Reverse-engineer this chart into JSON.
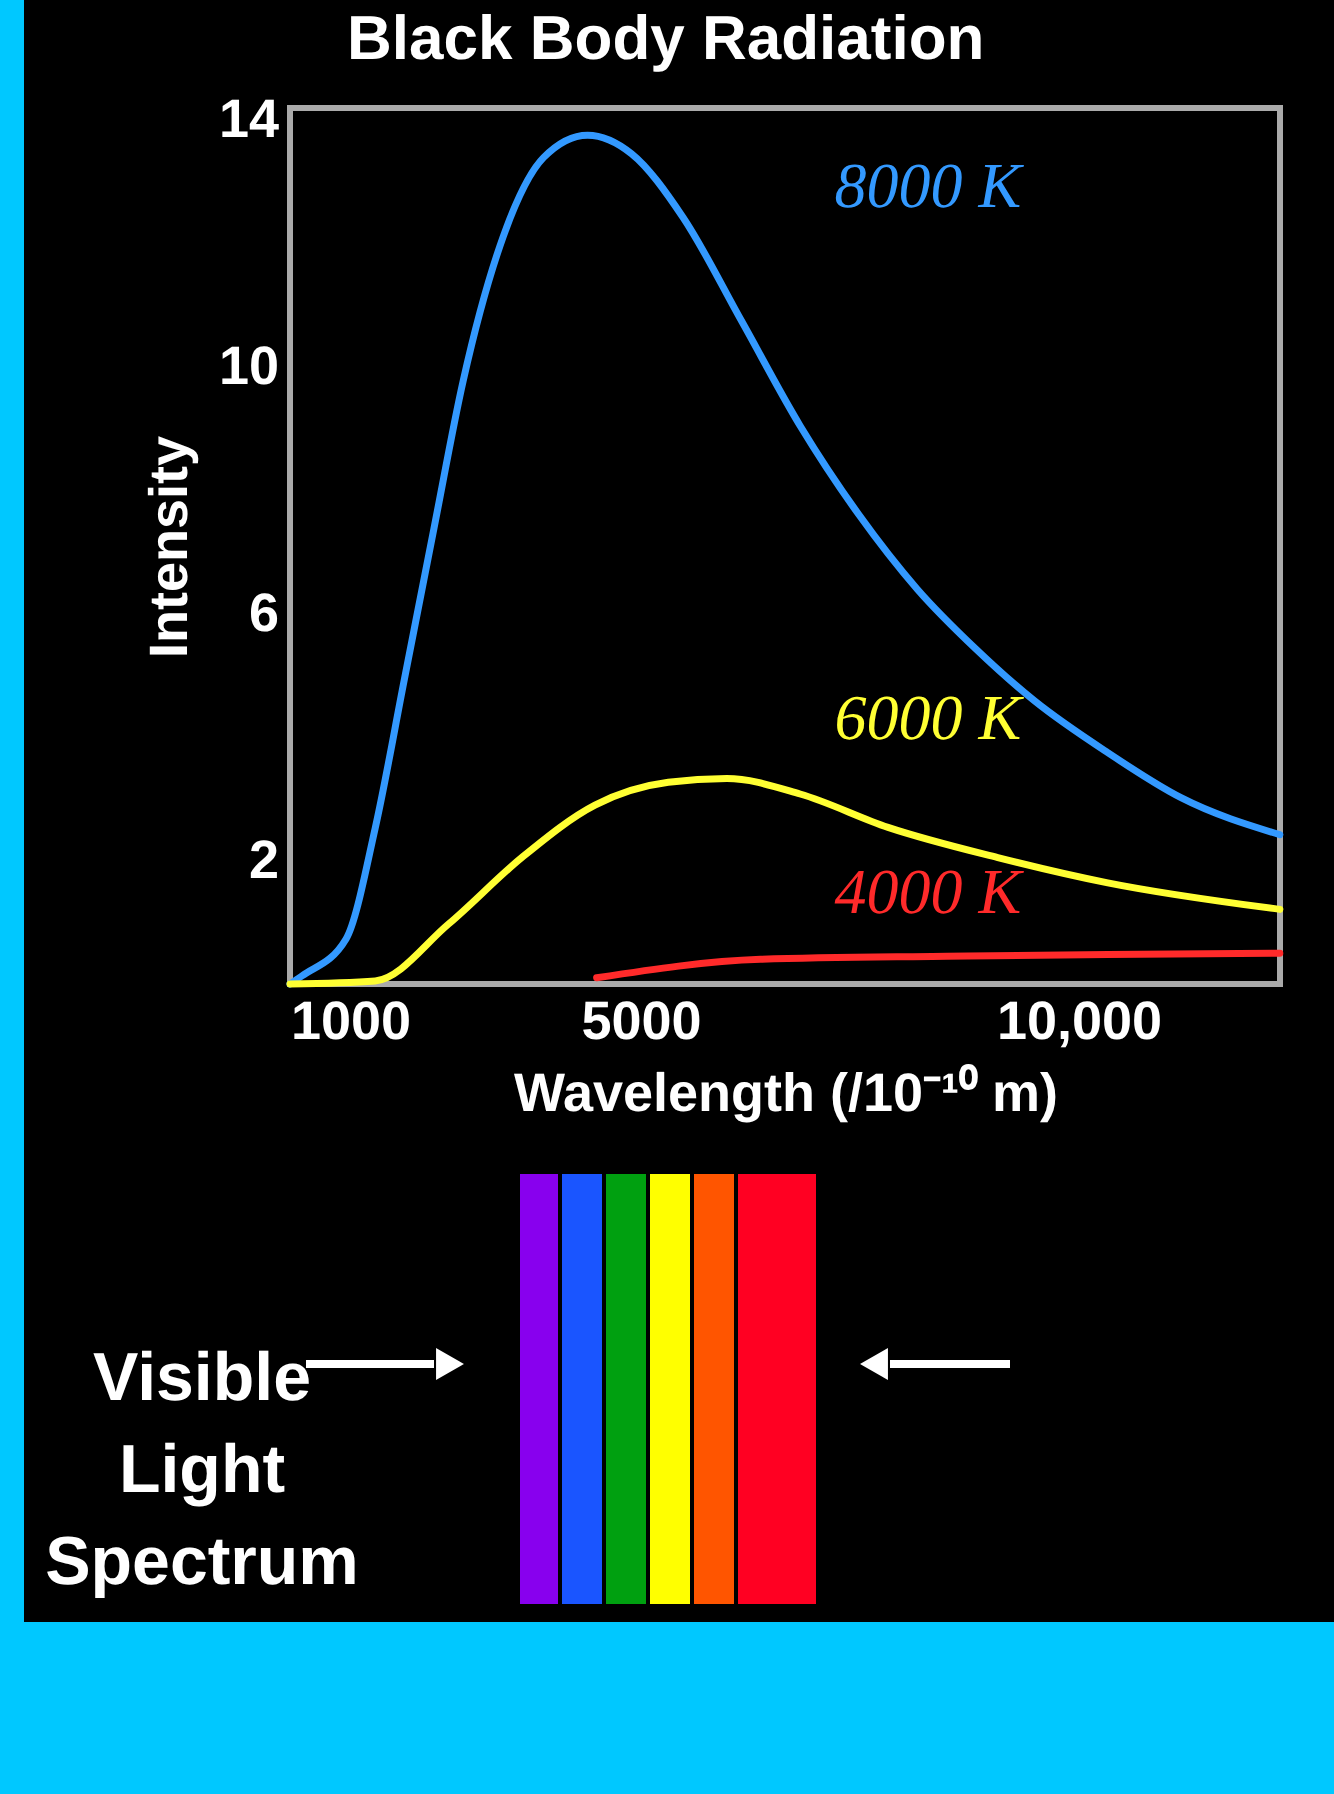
{
  "chart_data": {
    "type": "line",
    "title": "Black Body Radiation",
    "xlabel": "Wavelength (/10⁻¹⁰ m)",
    "ylabel": "Intensity",
    "xlim": [
      1000,
      12300
    ],
    "xticks": [
      1000,
      5000,
      {
        "value": 10000,
        "label": "10,000"
      }
    ],
    "ylim": [
      0,
      14.2
    ],
    "yticks": [
      2,
      6,
      10,
      14
    ],
    "grid": false,
    "legend": false,
    "annotations": [
      "Visible Light Spectrum"
    ],
    "series": [
      {
        "name": "8000 K",
        "color": "#3399ff",
        "x": [
          1000,
          1135,
          1640,
          1973,
          2307,
          2641,
          2977,
          3393,
          3896,
          4397,
          4898,
          5485,
          6153,
          6822,
          7492,
          8160,
          8829,
          9497,
          10334,
          11170,
          12298
        ],
        "values": [
          0,
          0.13,
          0.73,
          2.53,
          4.95,
          7.37,
          9.78,
          11.95,
          13.4,
          13.76,
          13.46,
          12.43,
          10.75,
          9.05,
          7.61,
          6.4,
          5.43,
          4.59,
          3.75,
          3.02,
          2.42
        ]
      },
      {
        "name": "6000 K",
        "color": "#ffff33",
        "x": [
          1000,
          1973,
          2808,
          3646,
          4481,
          5318,
          5986,
          6822,
          7826,
          9079,
          10334,
          12298
        ],
        "values": [
          0,
          0.05,
          0.97,
          2.05,
          2.9,
          3.27,
          3.33,
          3.08,
          2.54,
          2.05,
          1.64,
          1.21
        ]
      },
      {
        "name": "4000 K",
        "color": "#ff2a2a",
        "x": [
          4500,
          6371,
          8500,
          10334,
          12298
        ],
        "values": [
          0.1,
          0.4,
          0.45,
          0.48,
          0.5
        ]
      }
    ]
  }
}
